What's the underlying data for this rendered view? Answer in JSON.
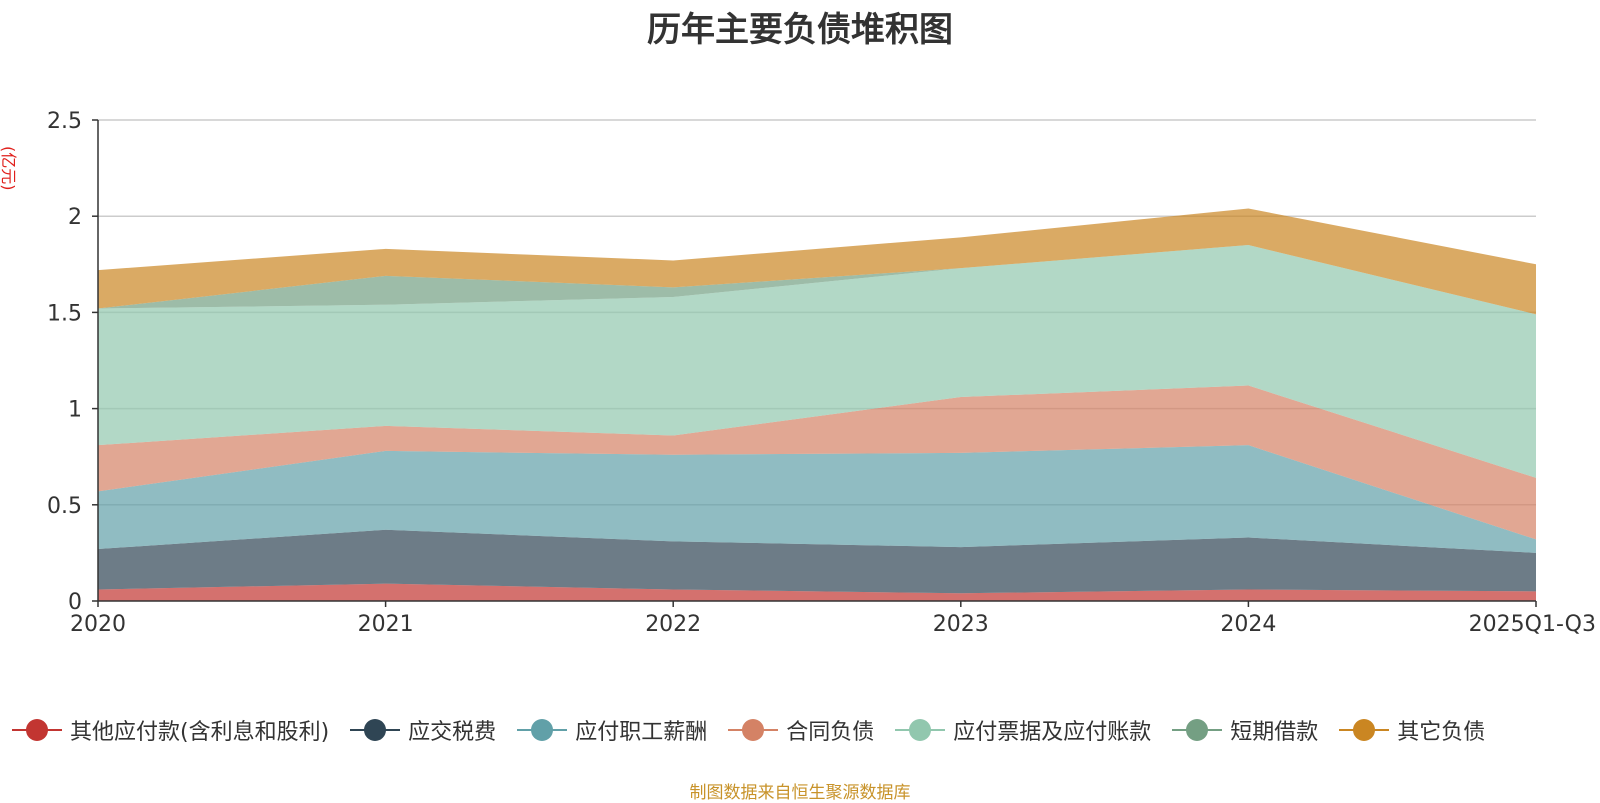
{
  "chart_data": {
    "type": "area",
    "stacked": true,
    "title": "历年主要负债堆积图",
    "unit": "(亿元)",
    "categories": [
      "2020",
      "2021",
      "2022",
      "2023",
      "2024",
      "2025Q1-Q3"
    ],
    "yticks": [
      "0",
      "0.5",
      "1",
      "1.5",
      "2",
      "2.5"
    ],
    "ylim": [
      0,
      2.5
    ],
    "series": [
      {
        "name": "其他应付款(含利息和股利)",
        "color": "#c23531",
        "values": [
          0.06,
          0.09,
          0.06,
          0.04,
          0.06,
          0.05
        ]
      },
      {
        "name": "应交税费",
        "color": "#2f4554",
        "values": [
          0.21,
          0.28,
          0.25,
          0.24,
          0.27,
          0.2
        ]
      },
      {
        "name": "应付职工薪酬",
        "color": "#61a0a8",
        "values": [
          0.3,
          0.41,
          0.45,
          0.49,
          0.48,
          0.07
        ]
      },
      {
        "name": "合同负债",
        "color": "#d48265",
        "values": [
          0.24,
          0.13,
          0.1,
          0.29,
          0.31,
          0.32
        ]
      },
      {
        "name": "应付票据及应付账款",
        "color": "#91c7ae",
        "values": [
          0.71,
          0.63,
          0.72,
          0.67,
          0.73,
          0.85
        ]
      },
      {
        "name": "短期借款",
        "color": "#749f83",
        "values": [
          0.0,
          0.15,
          0.05,
          0.0,
          0.0,
          0.0
        ]
      },
      {
        "name": "其它负债",
        "color": "#ca8622",
        "values": [
          0.2,
          0.14,
          0.14,
          0.16,
          0.19,
          0.26
        ]
      }
    ],
    "legend_position": "bottom",
    "grid": true
  },
  "source": "制图数据来自恒生聚源数据库"
}
